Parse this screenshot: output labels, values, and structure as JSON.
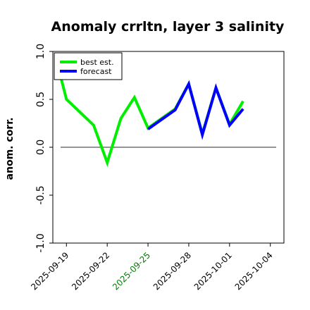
{
  "chart_data": {
    "type": "line",
    "title": "Anomaly crrltn, layer 3 salinity",
    "ylabel": "anom. corr.",
    "xlabel": "",
    "ylim": [
      -1.0,
      1.0
    ],
    "yticks": [
      "-1.0",
      "-0.5",
      "0.0",
      "0.5",
      "1.0"
    ],
    "ytick_values": [
      -1.0,
      -0.5,
      0.0,
      0.5,
      1.0
    ],
    "x_range": [
      "2025-09-18",
      "2025-10-05"
    ],
    "xticks": [
      {
        "label": "2025-09-19",
        "date": "2025-09-19",
        "color": "#000000"
      },
      {
        "label": "2025-09-22",
        "date": "2025-09-22",
        "color": "#000000"
      },
      {
        "label": "2025-09-25",
        "date": "2025-09-25",
        "color": "#008000"
      },
      {
        "label": "2025-09-28",
        "date": "2025-09-28",
        "color": "#000000"
      },
      {
        "label": "2025-10-01",
        "date": "2025-10-01",
        "color": "#000000"
      },
      {
        "label": "2025-10-04",
        "date": "2025-10-04",
        "color": "#000000"
      }
    ],
    "zero_line": true,
    "grid": false,
    "legend_position": "top-left",
    "series": [
      {
        "name": "best est.",
        "color": "#00ee00",
        "points": [
          {
            "x": "2025-09-18 12:00",
            "y": 0.78
          },
          {
            "x": "2025-09-19",
            "y": 0.5
          },
          {
            "x": "2025-09-21",
            "y": 0.23
          },
          {
            "x": "2025-09-22",
            "y": -0.16
          },
          {
            "x": "2025-09-23",
            "y": 0.3
          },
          {
            "x": "2025-09-24",
            "y": 0.52
          },
          {
            "x": "2025-09-25",
            "y": 0.2
          },
          {
            "x": "2025-09-27",
            "y": 0.4
          },
          {
            "x": "2025-09-28",
            "y": 0.66
          },
          {
            "x": "2025-09-29",
            "y": 0.14
          },
          {
            "x": "2025-09-30",
            "y": 0.62
          },
          {
            "x": "2025-10-01",
            "y": 0.24
          },
          {
            "x": "2025-10-02",
            "y": 0.48
          }
        ]
      },
      {
        "name": "forecast",
        "color": "#0000ff",
        "points": [
          {
            "x": "2025-09-25",
            "y": 0.19
          },
          {
            "x": "2025-09-27",
            "y": 0.39
          },
          {
            "x": "2025-09-28",
            "y": 0.66
          },
          {
            "x": "2025-09-29",
            "y": 0.13
          },
          {
            "x": "2025-09-30",
            "y": 0.62
          },
          {
            "x": "2025-10-01",
            "y": 0.23
          },
          {
            "x": "2025-10-02",
            "y": 0.4
          }
        ]
      }
    ]
  }
}
